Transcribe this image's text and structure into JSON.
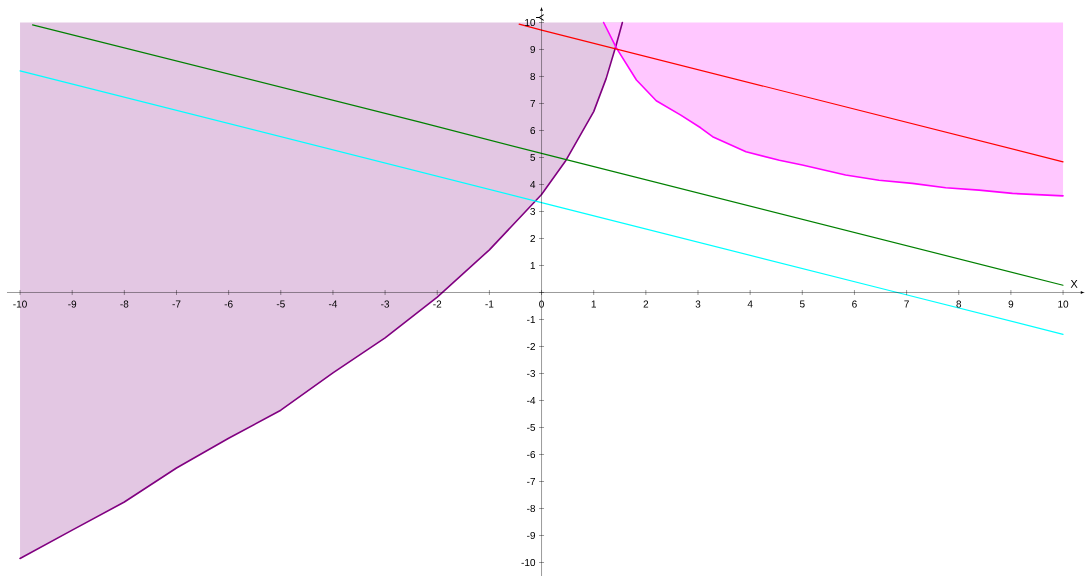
{
  "chart_data": {
    "type": "line",
    "xlabel": "X",
    "ylabel": "Y",
    "xlim": [
      -10.25,
      10.35
    ],
    "ylim": [
      -10.5,
      10.45
    ],
    "xticks": [
      -10,
      -9,
      -8,
      -7,
      -6,
      -5,
      -4,
      -3,
      -2,
      -1,
      0,
      1,
      2,
      3,
      4,
      5,
      6,
      7,
      8,
      9,
      10
    ],
    "yticks": [
      -10,
      -9,
      -8,
      -7,
      -6,
      -5,
      -4,
      -3,
      -2,
      -1,
      {
        "value": 0,
        "label": null
      },
      1,
      2,
      3,
      4,
      5,
      6,
      7,
      8,
      9,
      10
    ],
    "grid": false,
    "marker": "none",
    "line_style": "solid",
    "series": [
      {
        "color": "#800080",
        "x": [
          -10,
          -9,
          -8,
          -7,
          -6,
          -5,
          -4,
          -3,
          -2,
          -1,
          0,
          0.47,
          1,
          1.24,
          1.43,
          1.55
        ],
        "values": [
          -9.85,
          -8.8,
          -7.76,
          -6.5,
          -5.4,
          -4.36,
          -2.98,
          -1.68,
          -0.17,
          1.58,
          3.63,
          4.9,
          6.7,
          7.93,
          9.16,
          10
        ],
        "lower": [
          -9.85,
          -8.8,
          -7.76,
          -6.5,
          -5.4,
          -4.36,
          -2.98,
          -1.68,
          -0.17,
          1.58,
          3.63,
          4.9,
          6.7,
          7.93,
          9.16,
          10
        ],
        "upper": [
          10,
          10,
          10,
          10,
          10,
          10,
          10,
          10,
          10,
          10,
          10,
          10,
          10,
          10,
          10,
          10
        ]
      },
      {
        "color": "#ff00ff",
        "x": [
          1.19,
          1.44,
          1.82,
          2.2,
          2.67,
          3.05,
          3.28,
          3.92,
          4.56,
          5.0,
          5.83,
          6.47,
          7.11,
          7.75,
          8.39,
          9.03,
          10
        ],
        "values": [
          10,
          9.04,
          7.87,
          7.1,
          6.57,
          6.1,
          5.77,
          5.21,
          4.9,
          4.72,
          4.35,
          4.16,
          4.04,
          3.88,
          3.79,
          3.67,
          3.58
        ],
        "lower": [
          10,
          9.04,
          7.87,
          7.1,
          6.57,
          6.1,
          5.77,
          5.21,
          4.9,
          4.72,
          4.35,
          4.16,
          4.04,
          3.88,
          3.79,
          3.67,
          3.58
        ],
        "upper": [
          10,
          10,
          10,
          10,
          10,
          10,
          10,
          10,
          10,
          10,
          10,
          10,
          10,
          10,
          10,
          10,
          10
        ]
      },
      {
        "color": "#ff0000",
        "x": [
          -0.43,
          0,
          10
        ],
        "values": [
          9.94,
          9.72,
          4.84
        ]
      },
      {
        "color": "#008000",
        "x": [
          -9.76,
          -2.35,
          0,
          10
        ],
        "values": [
          9.91,
          6.32,
          5.15,
          0.27
        ]
      },
      {
        "color": "#00ffff",
        "x": [
          -10,
          0,
          6.86,
          10
        ],
        "values": [
          8.21,
          3.33,
          -0.02,
          -1.55
        ]
      }
    ]
  }
}
